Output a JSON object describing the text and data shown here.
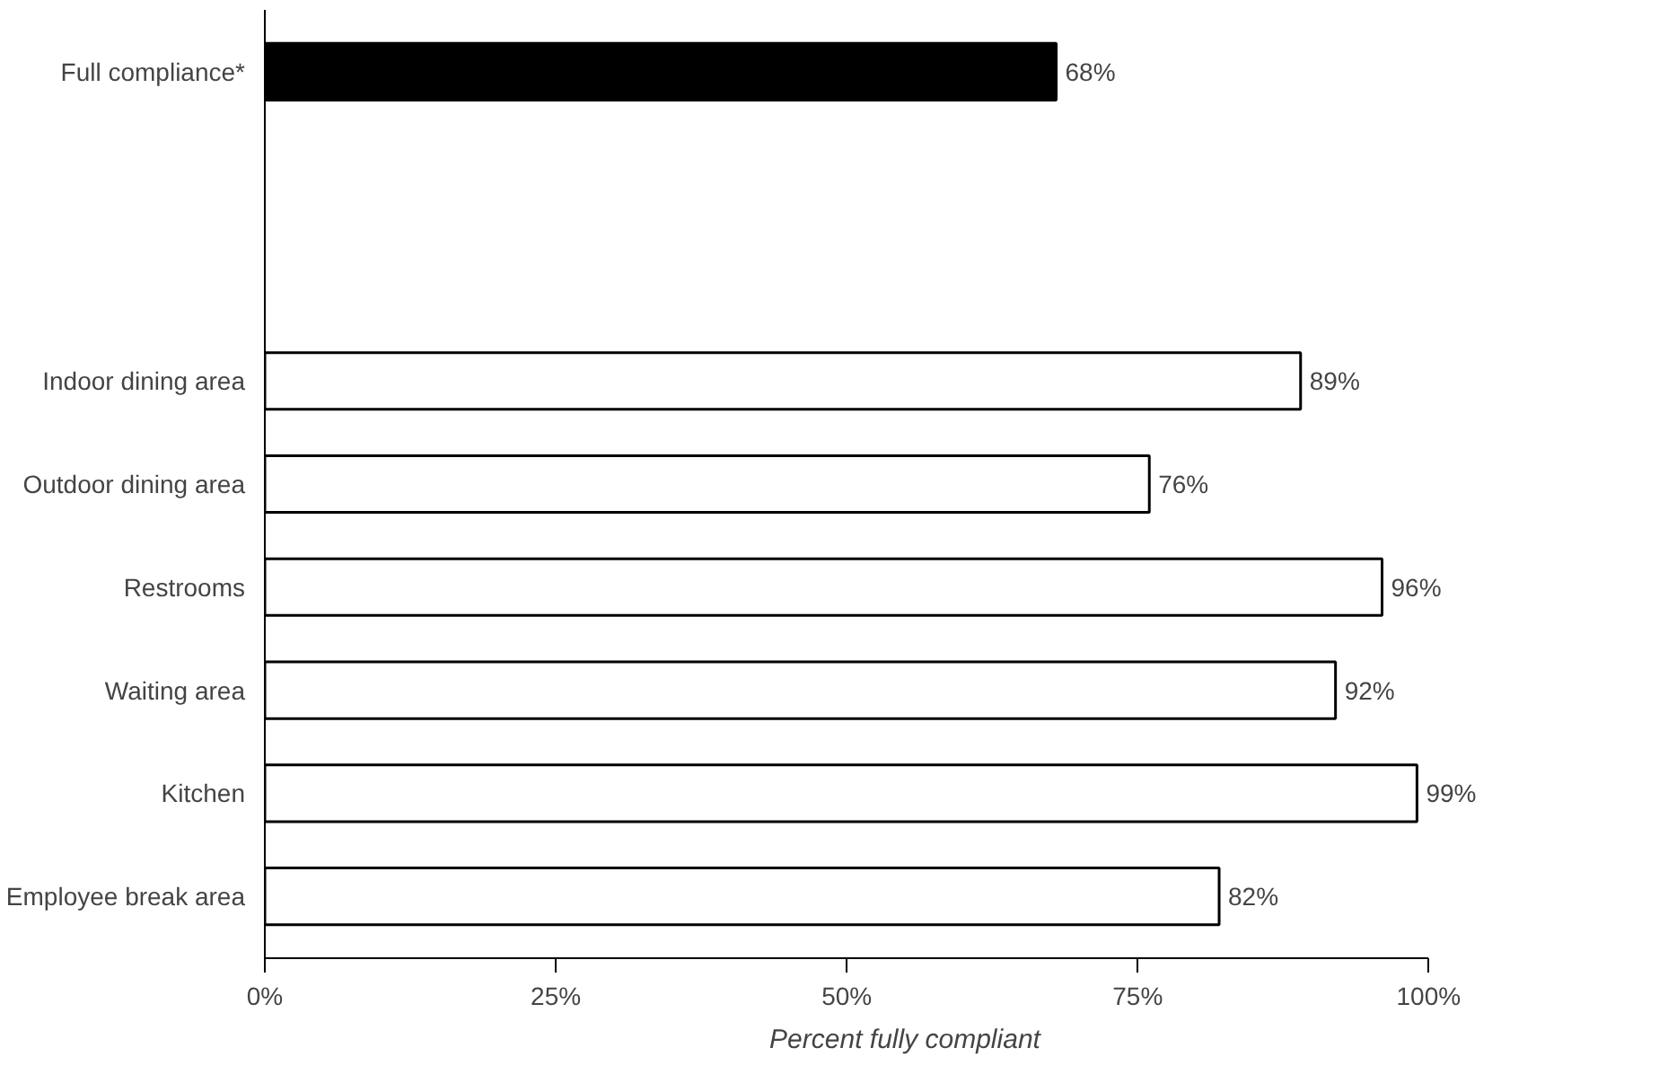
{
  "chart_data": {
    "type": "bar",
    "orientation": "horizontal",
    "categories": [
      "Full compliance*",
      null,
      null,
      "Indoor dining area",
      "Outdoor dining area",
      "Restrooms",
      "Waiting area",
      "Kitchen",
      "Employee break area"
    ],
    "values": [
      68,
      null,
      null,
      89,
      76,
      96,
      92,
      99,
      82
    ],
    "colors": [
      "#000000",
      "#ffffff",
      "#ffffff",
      "#ffffff",
      "#ffffff",
      "#ffffff",
      "#ffffff",
      "#ffffff",
      "#ffffff"
    ],
    "value_labels": [
      "68%",
      null,
      null,
      "89%",
      "76%",
      "96%",
      "92%",
      "99%",
      "82%"
    ],
    "xlabel": "Percent fully compliant",
    "xlim": [
      0,
      100
    ],
    "xticks": [
      {
        "value": 0,
        "label": "0%"
      },
      {
        "value": 25,
        "label": "25%"
      },
      {
        "value": 50,
        "label": "50%"
      },
      {
        "value": 75,
        "label": "75%"
      },
      {
        "value": 100,
        "label": "100%"
      }
    ],
    "grid": false
  }
}
